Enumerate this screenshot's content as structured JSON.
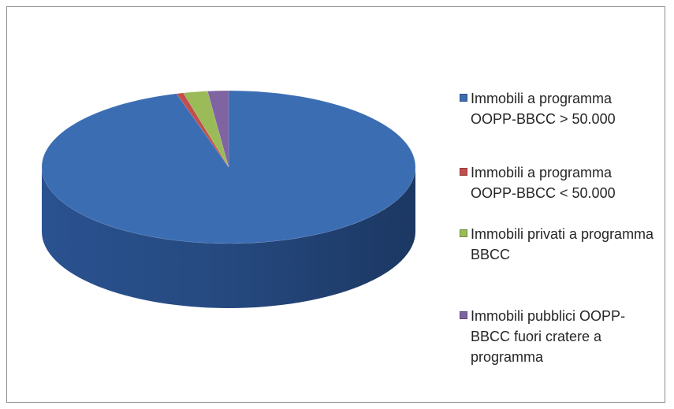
{
  "chart_data": {
    "type": "pie3d",
    "categories": [
      "Immobili a programma OOPP-BBCC > 50.000",
      "Immobili a programma OOPP-BBCC < 50.000",
      "Immobili privati a programma BBCC",
      "Immobili pubblici OOPP-BBCC fuori cratere a programma"
    ],
    "values": [
      95.5,
      0.6,
      2.1,
      1.8
    ],
    "colors": [
      "#3b6db3",
      "#c0504d",
      "#9bbb59",
      "#8064a2"
    ],
    "legend": "right"
  }
}
